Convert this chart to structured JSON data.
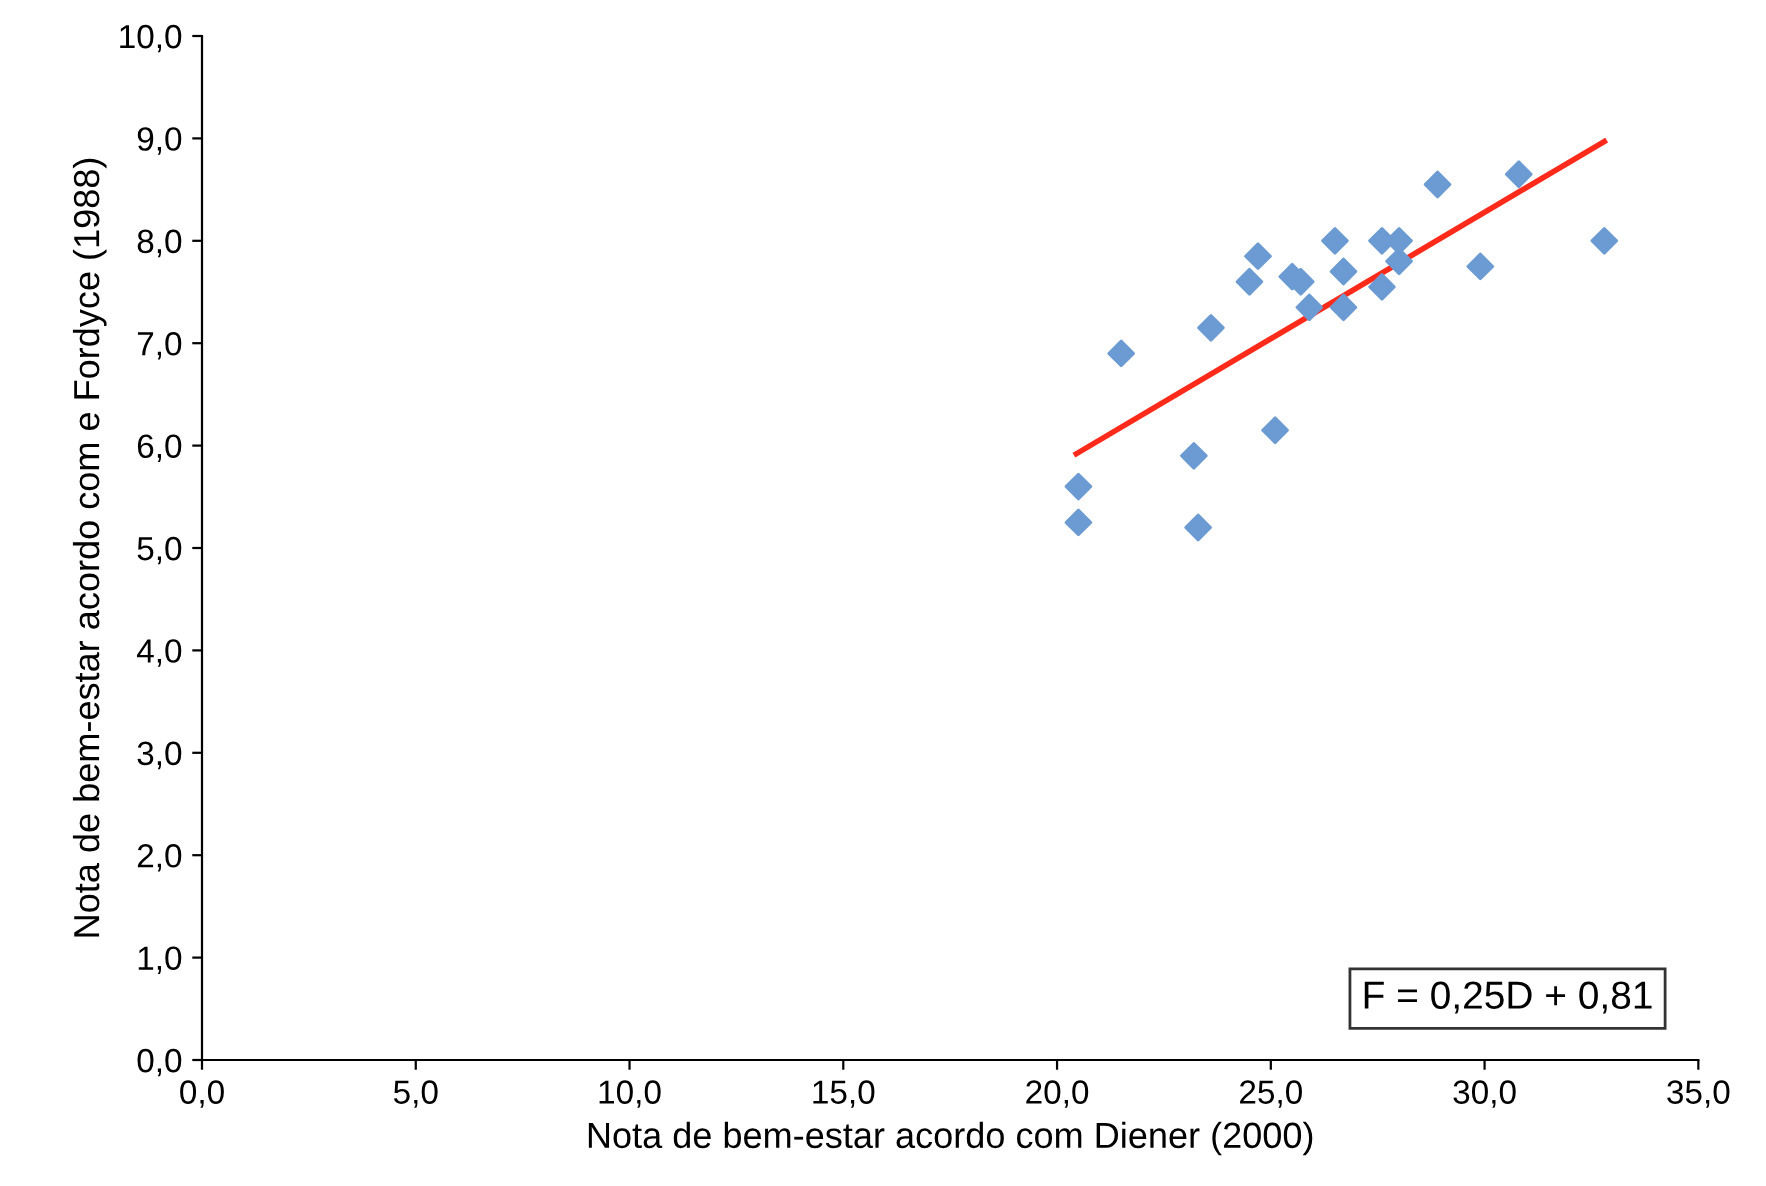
{
  "chart_data": {
    "type": "scatter",
    "xlabel": "Nota de bem-estar acordo com Diener (2000)",
    "ylabel": "Nota de bem-estar acordo com e Fordyce (1988)",
    "annotations": [
      "F = 0,25D + 0,81"
    ],
    "series": [
      {
        "color": "#6b9bd2",
        "marker": "diamond",
        "x": [
          20.5,
          20.5,
          21.5,
          23.2,
          23.3,
          23.6,
          25.1,
          24.5,
          24.7,
          25.5,
          25.7,
          25.9,
          26.5,
          26.7,
          26.7,
          27.6,
          28.0,
          28.0,
          27.6,
          28.9,
          29.9,
          30.8,
          32.8
        ],
        "values": [
          5.6,
          5.25,
          6.9,
          5.9,
          5.2,
          7.15,
          6.15,
          7.6,
          7.85,
          7.65,
          7.6,
          7.35,
          8.0,
          7.7,
          7.35,
          8.0,
          8.0,
          7.8,
          7.55,
          8.55,
          7.75,
          8.65,
          8.0
        ]
      },
      {
        "type": "line",
        "color": "#ff2a1a",
        "marker": "none",
        "x": [
          20.45,
          32.8
        ],
        "values": [
          5.92,
          8.97
        ]
      }
    ],
    "xlim": [
      0,
      35
    ],
    "ylim": [
      0,
      10
    ],
    "xticks": [
      {
        "value": 0,
        "label": "0,0"
      },
      {
        "value": 5,
        "label": "5,0"
      },
      {
        "value": 10,
        "label": "10,0"
      },
      {
        "value": 15,
        "label": "15,0"
      },
      {
        "value": 20,
        "label": "20,0"
      },
      {
        "value": 25,
        "label": "25,0"
      },
      {
        "value": 30,
        "label": "30,0"
      },
      {
        "value": 35,
        "label": "35,0"
      }
    ],
    "yticks": [
      {
        "value": 0,
        "label": "0,0"
      },
      {
        "value": 1,
        "label": "1,0"
      },
      {
        "value": 2,
        "label": "2,0"
      },
      {
        "value": 3,
        "label": "3,0"
      },
      {
        "value": 4,
        "label": "4,0"
      },
      {
        "value": 5,
        "label": "5,0"
      },
      {
        "value": 6,
        "label": "6,0"
      },
      {
        "value": 7,
        "label": "7,0"
      },
      {
        "value": 8,
        "label": "8,0"
      },
      {
        "value": 9,
        "label": "9,0"
      },
      {
        "value": 10,
        "label": "10,0"
      }
    ],
    "grid": false,
    "legend": false
  }
}
